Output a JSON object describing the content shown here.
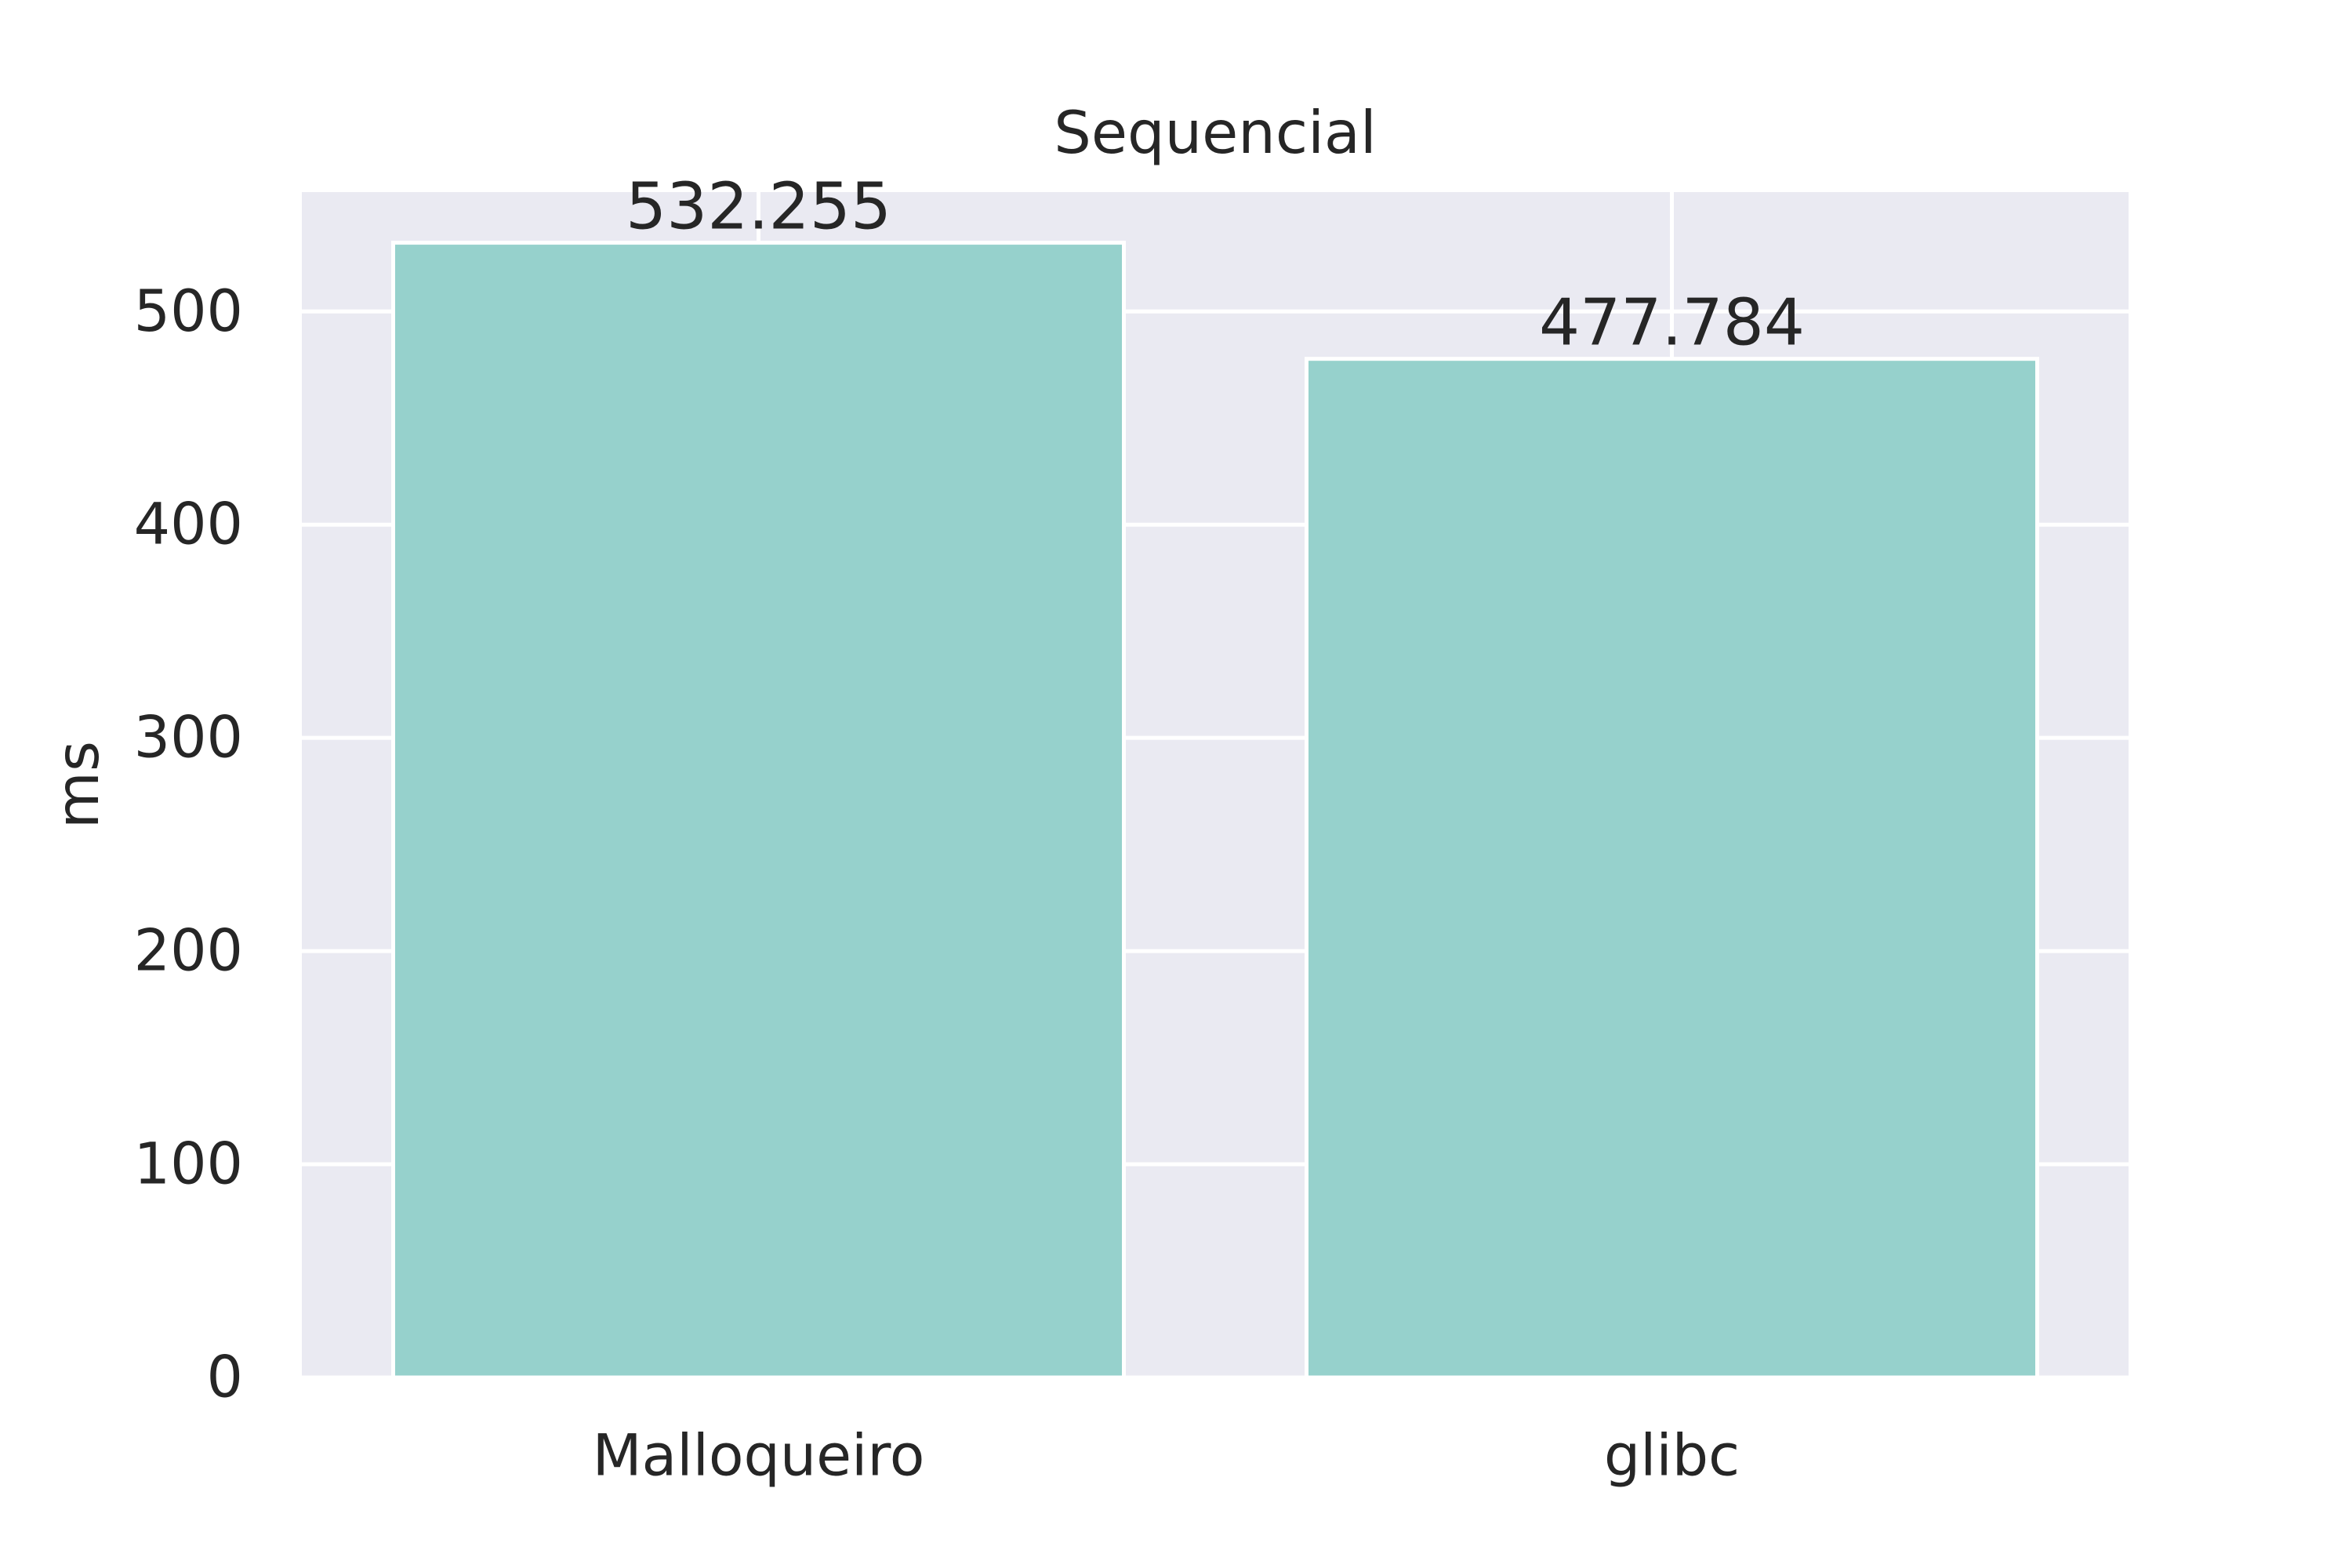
{
  "chart_data": {
    "type": "bar",
    "title": "Sequencial",
    "xlabel": "",
    "ylabel": "ms",
    "categories": [
      "Malloqueiro",
      "glibc"
    ],
    "values": [
      532.255,
      477.784
    ],
    "value_labels": [
      "532.255",
      "477.784"
    ],
    "ylim": [
      0,
      556
    ],
    "yticks": [
      0,
      100,
      200,
      300,
      400,
      500
    ],
    "ytick_labels": [
      "0",
      "100",
      "200",
      "300",
      "400",
      "500"
    ],
    "grid": true,
    "legend": "none",
    "colors": {
      "bar": "#96d1cc",
      "plot_background": "#eaeaf2",
      "grid": "#ffffff",
      "text": "#262626"
    }
  }
}
